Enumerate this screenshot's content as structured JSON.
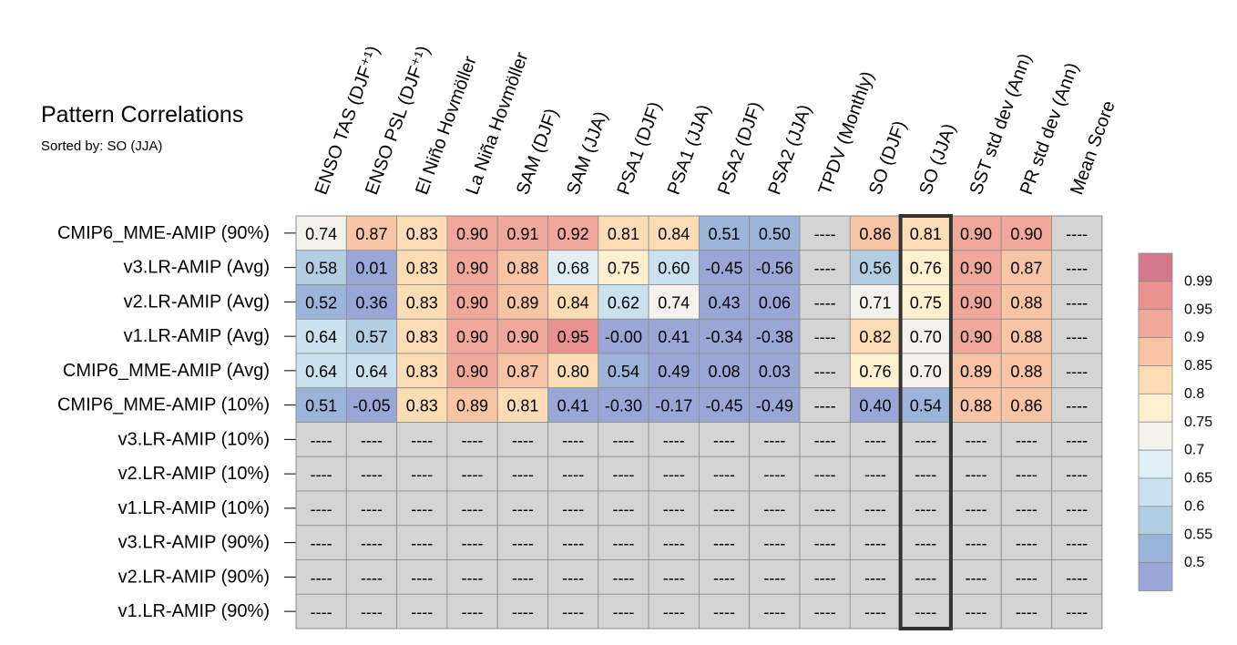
{
  "title": "Pattern Correlations",
  "subtitle": "Sorted by: SO (JJA)",
  "missing_text": "----",
  "highlight_column": "SO (JJA)",
  "chart_data": {
    "type": "heatmap",
    "title": "Pattern Correlations",
    "subtitle": "Sorted by: SO (JJA)",
    "columns": [
      "ENSO TAS (DJF⁺¹)",
      "ENSO PSL (DJF⁺¹)",
      "El Niño Hovmöller",
      "La Niña Hovmöller",
      "SAM (DJF)",
      "SAM (JJA)",
      "PSA1 (DJF)",
      "PSA1 (JJA)",
      "PSA2 (DJF)",
      "PSA2 (JJA)",
      "TPDV (Monthly)",
      "SO (DJF)",
      "SO (JJA)",
      "SST std dev (Ann)",
      "PR std dev (Ann)",
      "Mean Score"
    ],
    "rows": [
      "CMIP6_MME-AMIP (90%)",
      "v3.LR-AMIP (Avg)",
      "v2.LR-AMIP (Avg)",
      "v1.LR-AMIP (Avg)",
      "CMIP6_MME-AMIP (Avg)",
      "CMIP6_MME-AMIP (10%)",
      "v3.LR-AMIP (10%)",
      "v2.LR-AMIP (10%)",
      "v1.LR-AMIP (10%)",
      "v3.LR-AMIP (90%)",
      "v2.LR-AMIP (90%)",
      "v1.LR-AMIP (90%)"
    ],
    "values": [
      [
        "0.74",
        "0.87",
        "0.83",
        "0.90",
        "0.91",
        "0.92",
        "0.81",
        "0.84",
        "0.51",
        "0.50",
        null,
        "0.86",
        "0.81",
        "0.90",
        "0.90",
        null
      ],
      [
        "0.58",
        "0.01",
        "0.83",
        "0.90",
        "0.88",
        "0.68",
        "0.75",
        "0.60",
        "-0.45",
        "-0.56",
        null,
        "0.56",
        "0.76",
        "0.90",
        "0.87",
        null
      ],
      [
        "0.52",
        "0.36",
        "0.83",
        "0.90",
        "0.89",
        "0.84",
        "0.62",
        "0.74",
        "0.43",
        "0.06",
        null,
        "0.71",
        "0.75",
        "0.90",
        "0.88",
        null
      ],
      [
        "0.64",
        "0.57",
        "0.83",
        "0.90",
        "0.90",
        "0.95",
        "-0.00",
        "0.41",
        "-0.34",
        "-0.38",
        null,
        "0.82",
        "0.70",
        "0.90",
        "0.88",
        null
      ],
      [
        "0.64",
        "0.64",
        "0.83",
        "0.90",
        "0.87",
        "0.80",
        "0.54",
        "0.49",
        "0.08",
        "0.03",
        null,
        "0.76",
        "0.70",
        "0.89",
        "0.88",
        null
      ],
      [
        "0.51",
        "-0.05",
        "0.83",
        "0.89",
        "0.81",
        "0.41",
        "-0.30",
        "-0.17",
        "-0.45",
        "-0.49",
        null,
        "0.40",
        "0.54",
        "0.88",
        "0.86",
        null
      ],
      [
        null,
        null,
        null,
        null,
        null,
        null,
        null,
        null,
        null,
        null,
        null,
        null,
        null,
        null,
        null,
        null
      ],
      [
        null,
        null,
        null,
        null,
        null,
        null,
        null,
        null,
        null,
        null,
        null,
        null,
        null,
        null,
        null,
        null
      ],
      [
        null,
        null,
        null,
        null,
        null,
        null,
        null,
        null,
        null,
        null,
        null,
        null,
        null,
        null,
        null,
        null
      ],
      [
        null,
        null,
        null,
        null,
        null,
        null,
        null,
        null,
        null,
        null,
        null,
        null,
        null,
        null,
        null,
        null
      ],
      [
        null,
        null,
        null,
        null,
        null,
        null,
        null,
        null,
        null,
        null,
        null,
        null,
        null,
        null,
        null,
        null
      ],
      [
        null,
        null,
        null,
        null,
        null,
        null,
        null,
        null,
        null,
        null,
        null,
        null,
        null,
        null,
        null,
        null
      ]
    ],
    "colorbar": {
      "labels": [
        "0.99",
        "0.95",
        "0.9",
        "0.85",
        "0.8",
        "0.75",
        "0.7",
        "0.65",
        "0.6",
        "0.55",
        "0.5"
      ],
      "colors": [
        "#d4788b",
        "#e99090",
        "#f0a89a",
        "#f7c4a5",
        "#fbdcb4",
        "#fcf0cf",
        "#f3f2ec",
        "#e0eff5",
        "#c9e2ee",
        "#b3cde3",
        "#9cb4da",
        "#9aa6d6"
      ],
      "missing_color": "#d4d4d4"
    }
  }
}
